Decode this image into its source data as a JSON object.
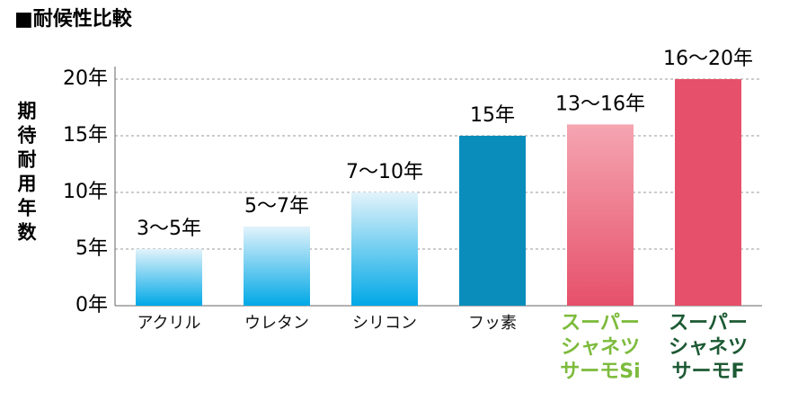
{
  "chart_data": {
    "type": "bar",
    "title": "■耐候性比較",
    "y_label": "期待耐用年数",
    "categories": [
      "アクリル",
      "ウレタン",
      "シリコン",
      "フッ素",
      [
        "スーパー",
        "シャネツ",
        "サーモSi"
      ],
      [
        "スーパー",
        "シャネツ",
        "サーモF"
      ]
    ],
    "values": [
      5,
      7,
      10,
      15,
      16,
      20
    ],
    "value_labels": [
      "3〜5年",
      "5〜7年",
      "7〜10年",
      "15年",
      "13〜16年",
      "16〜20年"
    ],
    "colors": [
      [
        "#e2f3fb",
        "#00a8e6"
      ],
      [
        "#e2f3fb",
        "#00a8e6"
      ],
      [
        "#e2f3fb",
        "#00a8e6"
      ],
      [
        "#0a8dbb",
        "#0a8dbb"
      ],
      [
        "#f5a5b1",
        "#e6506a"
      ],
      [
        "#e6506a",
        "#e6506a"
      ]
    ],
    "label_colors": [
      "#111111",
      "#111111",
      "#111111",
      "#111111",
      "#7dbb3c",
      "#1d5a34"
    ],
    "ylim": [
      0,
      20
    ],
    "yticks": [
      {
        "value": 0,
        "label": "0年"
      },
      {
        "value": 5,
        "label": "5年"
      },
      {
        "value": 10,
        "label": "10年"
      },
      {
        "value": 15,
        "label": "15年"
      },
      {
        "value": 20,
        "label": "20年"
      }
    ],
    "grid": true
  }
}
